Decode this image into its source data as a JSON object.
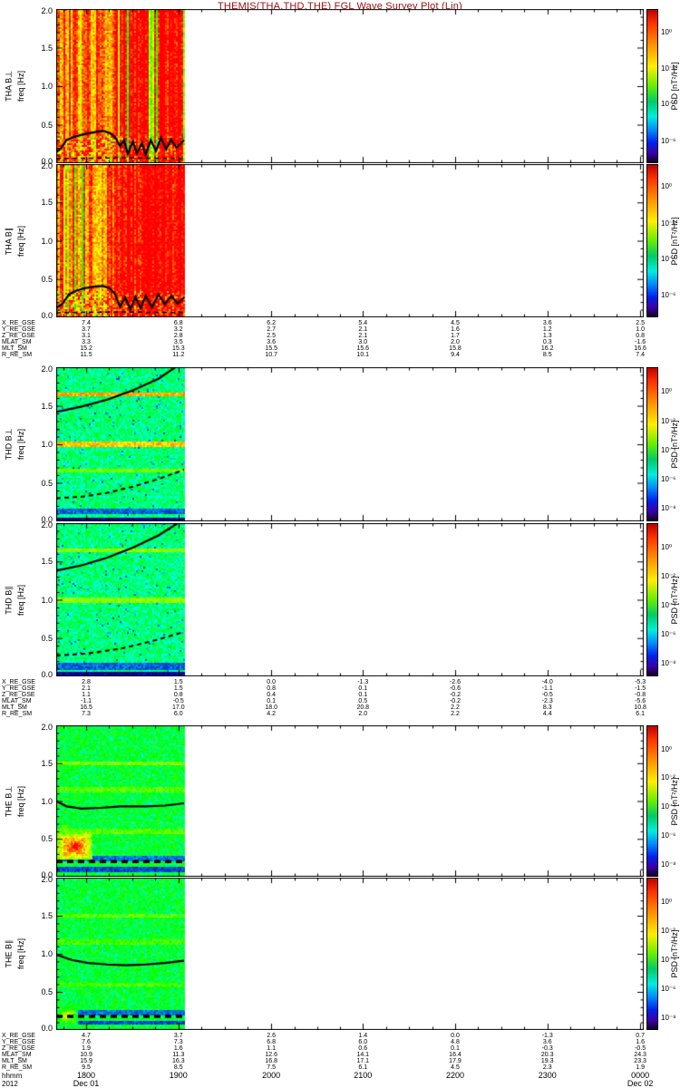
{
  "title": "THEMIS(THA,THD,THE) FGL Wave Survey Plot (Lin)",
  "title_color": "#a01010",
  "chart_data": {
    "type": "heatmap",
    "description": "Six frequency-time spectrogram panels (wave power spectral density) for spacecraft THA, THD, THE; perpendicular and parallel magnetic components; data coverage ends near 1905 UT.",
    "x_axis": {
      "label": "hhmm",
      "year": "2012",
      "tick_labels": [
        "1800",
        "1900",
        "2000",
        "2100",
        "2200",
        "2300",
        "0000"
      ],
      "dates": [
        {
          "tick": 0,
          "label": "Dec 01"
        },
        {
          "tick": 6,
          "label": "Dec 02"
        }
      ]
    },
    "y_axis": {
      "label": "freq [Hz]",
      "min": 0,
      "max": 2,
      "tick_labels": [
        "2.0",
        "1.5",
        "1.0",
        "0.5",
        "0.0"
      ],
      "tick_values": [
        2.0,
        1.5,
        1.0,
        0.5,
        0.0
      ]
    },
    "data_time_coverage_frac": 0.218,
    "panels": [
      {
        "instrument_label": "THA B⊥",
        "freq_label": "freq [Hz]",
        "cbar_title": "PSD [nT²/Hz]",
        "cbar_labels": [
          "10⁰",
          "10⁻²",
          "10⁻⁴",
          "10⁻⁶"
        ],
        "cbar_fracs": [
          0.15,
          0.39,
          0.62,
          0.86
        ],
        "style": "hot",
        "seed": 11,
        "lines": [],
        "bands": [],
        "blobs": [],
        "solid_curve": [
          [
            0,
            0.14
          ],
          [
            0.04,
            0.2
          ],
          [
            0.08,
            0.3
          ],
          [
            0.14,
            0.34
          ],
          [
            0.2,
            0.37
          ],
          [
            0.26,
            0.39
          ],
          [
            0.32,
            0.41
          ],
          [
            0.37,
            0.42
          ],
          [
            0.42,
            0.39
          ],
          [
            0.46,
            0.34
          ],
          [
            0.5,
            0.22
          ],
          [
            0.53,
            0.3
          ],
          [
            0.56,
            0.12
          ],
          [
            0.6,
            0.28
          ],
          [
            0.63,
            0.13
          ],
          [
            0.67,
            0.26
          ],
          [
            0.7,
            0.11
          ],
          [
            0.74,
            0.3
          ],
          [
            0.78,
            0.16
          ],
          [
            0.82,
            0.33
          ],
          [
            0.86,
            0.18
          ],
          [
            0.9,
            0.31
          ],
          [
            0.94,
            0.2
          ],
          [
            1,
            0.3
          ]
        ],
        "dashed_curve": [
          [
            0,
            0.06
          ],
          [
            0.5,
            0.07
          ],
          [
            1,
            0.06
          ]
        ],
        "dashed_width": 1.5
      },
      {
        "instrument_label": "THA B∥",
        "freq_label": "freq [Hz]",
        "cbar_title": "PSD [nT²/Hz]",
        "cbar_labels": [
          "10⁰",
          "10⁻²",
          "10⁻⁴",
          "10⁻⁶"
        ],
        "cbar_fracs": [
          0.15,
          0.39,
          0.62,
          0.86
        ],
        "style": "hot",
        "seed": 22,
        "lines": [],
        "bands": [],
        "blobs": [],
        "solid_curve": [
          [
            0,
            0.12
          ],
          [
            0.05,
            0.18
          ],
          [
            0.1,
            0.3
          ],
          [
            0.16,
            0.35
          ],
          [
            0.22,
            0.38
          ],
          [
            0.3,
            0.4
          ],
          [
            0.36,
            0.41
          ],
          [
            0.42,
            0.38
          ],
          [
            0.46,
            0.3
          ],
          [
            0.5,
            0.14
          ],
          [
            0.54,
            0.26
          ],
          [
            0.58,
            0.1
          ],
          [
            0.62,
            0.27
          ],
          [
            0.66,
            0.12
          ],
          [
            0.7,
            0.28
          ],
          [
            0.75,
            0.13
          ],
          [
            0.8,
            0.3
          ],
          [
            0.85,
            0.17
          ],
          [
            0.9,
            0.28
          ],
          [
            0.95,
            0.18
          ],
          [
            1,
            0.26
          ]
        ],
        "dashed_curve": [
          [
            0,
            0.06
          ],
          [
            0.5,
            0.07
          ],
          [
            1,
            0.06
          ]
        ],
        "dashed_width": 1.5
      },
      {
        "instrument_label": "THD B⊥",
        "freq_label": "freq [Hz]",
        "cbar_title": "PSD [nT²/Hz]",
        "cbar_labels": [
          "10⁰",
          "10⁻²",
          "10⁻⁴",
          "10⁻⁶",
          "10⁻⁸"
        ],
        "cbar_fracs": [
          0.16,
          0.35,
          0.54,
          0.73,
          0.92
        ],
        "style": "cool",
        "seed": 33,
        "lines": [
          {
            "f": 1.65,
            "v": 0.78
          },
          {
            "f": 1.0,
            "v": 0.76
          },
          {
            "f": 0.66,
            "v": 0.6
          }
        ],
        "bands": [
          {
            "f0": 0.09,
            "f1": 0.17,
            "v": 0.17
          },
          {
            "f0": 0.0,
            "f1": 0.05,
            "v": 0.07
          }
        ],
        "blobs": [],
        "solid_curve": [
          [
            0,
            1.42
          ],
          [
            0.2,
            1.49
          ],
          [
            0.4,
            1.58
          ],
          [
            0.6,
            1.7
          ],
          [
            0.8,
            1.85
          ],
          [
            0.95,
            2.02
          ]
        ],
        "dashed_curve": [
          [
            0,
            0.3
          ],
          [
            0.2,
            0.32
          ],
          [
            0.4,
            0.37
          ],
          [
            0.6,
            0.45
          ],
          [
            0.8,
            0.55
          ],
          [
            1,
            0.67
          ]
        ],
        "dashed_width": 2
      },
      {
        "instrument_label": "THD B∥",
        "freq_label": "freq [Hz]",
        "cbar_title": "PSD [nT²/Hz]",
        "cbar_labels": [
          "10⁰",
          "10⁻²",
          "10⁻⁴",
          "10⁻⁶",
          "10⁻⁸"
        ],
        "cbar_fracs": [
          0.16,
          0.35,
          0.54,
          0.73,
          0.92
        ],
        "style": "cool",
        "seed": 44,
        "lines": [
          {
            "f": 1.65,
            "v": 0.62
          },
          {
            "f": 1.0,
            "v": 0.62
          }
        ],
        "bands": [
          {
            "f0": 0.09,
            "f1": 0.17,
            "v": 0.17
          },
          {
            "f0": 0.0,
            "f1": 0.05,
            "v": 0.07
          }
        ],
        "blobs": [],
        "solid_curve": [
          [
            0,
            1.38
          ],
          [
            0.2,
            1.45
          ],
          [
            0.4,
            1.55
          ],
          [
            0.6,
            1.68
          ],
          [
            0.8,
            1.84
          ],
          [
            0.97,
            2.02
          ]
        ],
        "dashed_curve": [
          [
            0,
            0.27
          ],
          [
            0.25,
            0.3
          ],
          [
            0.5,
            0.36
          ],
          [
            0.75,
            0.46
          ],
          [
            1,
            0.58
          ]
        ],
        "dashed_width": 2
      },
      {
        "instrument_label": "THE B⊥",
        "freq_label": "freq [Hz]",
        "cbar_title": "PSD [nT²/Hz]",
        "cbar_labels": [
          "10⁰",
          "10⁻²",
          "10⁻⁴",
          "10⁻⁶",
          "10⁻⁸"
        ],
        "cbar_fracs": [
          0.16,
          0.35,
          0.54,
          0.73,
          0.92
        ],
        "style": "green",
        "seed": 55,
        "lines": [
          {
            "f": 1.5,
            "v": 0.6
          },
          {
            "f": 1.15,
            "v": 0.57
          },
          {
            "f": 0.6,
            "v": 0.57
          }
        ],
        "bands": [
          {
            "f0": 0.07,
            "f1": 0.13,
            "v": 0.15
          },
          {
            "f0": 0.2,
            "f1": 0.27,
            "v": 0.18
          }
        ],
        "blobs": [
          {
            "t0": 0.0,
            "t1": 0.27,
            "f0": 0.22,
            "f1": 0.58,
            "v": 0.95
          },
          {
            "t0": 0.0,
            "t1": 0.12,
            "f0": 0.55,
            "f1": 0.75,
            "v": 0.65
          }
        ],
        "solid_curve": [
          [
            0,
            1.0
          ],
          [
            0.08,
            0.93
          ],
          [
            0.2,
            0.9
          ],
          [
            0.35,
            0.91
          ],
          [
            0.5,
            0.93
          ],
          [
            0.7,
            0.93
          ],
          [
            0.85,
            0.94
          ],
          [
            1,
            0.97
          ]
        ],
        "dashed_curve": [
          [
            0,
            0.2
          ],
          [
            1,
            0.2
          ]
        ],
        "dashed_width": 3.5
      },
      {
        "instrument_label": "THE B∥",
        "freq_label": "freq [Hz]",
        "cbar_title": "PSD [nT²/Hz]",
        "cbar_labels": [
          "10⁰",
          "10⁻²",
          "10⁻⁴",
          "10⁻⁶",
          "10⁻⁸"
        ],
        "cbar_fracs": [
          0.16,
          0.35,
          0.54,
          0.73,
          0.92
        ],
        "style": "green",
        "seed": 66,
        "lines": [
          {
            "f": 1.5,
            "v": 0.58
          },
          {
            "f": 1.15,
            "v": 0.56
          },
          {
            "f": 0.6,
            "v": 0.56
          }
        ],
        "bands": [
          {
            "f0": 0.07,
            "f1": 0.13,
            "v": 0.15
          },
          {
            "f0": 0.2,
            "f1": 0.26,
            "v": 0.18
          }
        ],
        "blobs": [
          {
            "t0": 0.0,
            "t1": 0.16,
            "f0": 0.07,
            "f1": 0.3,
            "v": 0.78
          }
        ],
        "solid_curve": [
          [
            0,
            0.99
          ],
          [
            0.12,
            0.92
          ],
          [
            0.25,
            0.88
          ],
          [
            0.4,
            0.86
          ],
          [
            0.55,
            0.85
          ],
          [
            0.7,
            0.86
          ],
          [
            0.85,
            0.88
          ],
          [
            1,
            0.91
          ]
        ],
        "dashed_curve": [
          [
            0,
            0.18
          ],
          [
            1,
            0.18
          ]
        ],
        "dashed_width": 3.5
      }
    ],
    "ephemeris_blocks": [
      {
        "spacecraft": "THA",
        "row_labels": [
          "X_RE_GSE",
          "Y_RE_GSE",
          "Z_RE_GSE",
          "MLAT_SM",
          "MLT_SM",
          "R_RE_SM"
        ],
        "rows": [
          [
            "7.4",
            "6.8",
            "6.2",
            "5.4",
            "4.5",
            "3.6",
            "2.5"
          ],
          [
            "3.7",
            "3.2",
            "2.7",
            "2.1",
            "1.6",
            "1.2",
            "1.0"
          ],
          [
            "3.1",
            "2.8",
            "2.5",
            "2.1",
            "1.7",
            "1.3",
            "0.8"
          ],
          [
            "3.3",
            "3.5",
            "3.6",
            "3.0",
            "2.0",
            "0.3",
            "-1.6"
          ],
          [
            "15.2",
            "15.3",
            "15.5",
            "15.6",
            "15.8",
            "16.2",
            "16.6"
          ],
          [
            "11.5",
            "11.2",
            "10.7",
            "10.1",
            "9.4",
            "8.5",
            "7.4"
          ]
        ]
      },
      {
        "spacecraft": "THD",
        "row_labels": [
          "X_RE_GSE",
          "Y_RE_GSE",
          "Z_RE_GSE",
          "MLAT_SM",
          "MLT_SM",
          "R_RE_SM"
        ],
        "rows": [
          [
            "2.8",
            "1.5",
            "0.0",
            "-1.3",
            "-2.6",
            "-4.0",
            "-5.3"
          ],
          [
            "2.1",
            "1.5",
            "0.8",
            "0.1",
            "-0.6",
            "-1.1",
            "-1.5"
          ],
          [
            "1.1",
            "0.8",
            "0.4",
            "0.1",
            "-0.2",
            "-0.5",
            "-0.8"
          ],
          [
            "-1.1",
            "-0.5",
            "0.1",
            "0.5",
            "-0.2",
            "-2.3",
            "-5.6"
          ],
          [
            "16.5",
            "17.0",
            "18.0",
            "20.8",
            "2.2",
            "8.3",
            "10.8"
          ],
          [
            "7.3",
            "6.0",
            "4.2",
            "2.0",
            "2.2",
            "4.4",
            "6.1"
          ]
        ]
      },
      {
        "spacecraft": "THE",
        "row_labels": [
          "X_RE_GSE",
          "Y_RE_GSE",
          "Z_RE_GSE",
          "MLAT_SM",
          "MLT_SM",
          "R_RE_SM"
        ],
        "rows": [
          [
            "4.7",
            "3.7",
            "2.6",
            "1.4",
            "0.0",
            "-1.3",
            "0.7"
          ],
          [
            "7.6",
            "7.3",
            "6.8",
            "6.0",
            "4.8",
            "3.6",
            "1.6"
          ],
          [
            "1.9",
            "1.6",
            "1.1",
            "0.6",
            "0.1",
            "-0.3",
            "-0.5"
          ],
          [
            "10.9",
            "11.3",
            "12.6",
            "14.1",
            "16.4",
            "20.3",
            "24.3"
          ],
          [
            "15.9",
            "16.3",
            "16.8",
            "17.1",
            "17.9",
            "19.3",
            "23.3"
          ],
          [
            "9.5",
            "8.5",
            "7.5",
            "6.1",
            "4.5",
            "2.3",
            "1.9"
          ]
        ]
      }
    ]
  }
}
